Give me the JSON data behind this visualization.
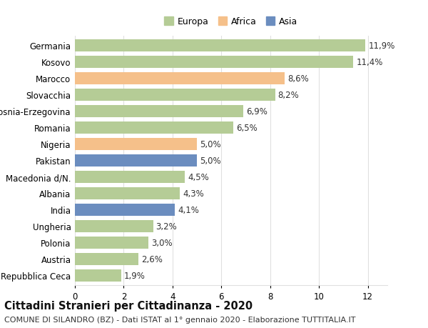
{
  "categories": [
    "Germania",
    "Kosovo",
    "Marocco",
    "Slovacchia",
    "Bosnia-Erzegovina",
    "Romania",
    "Nigeria",
    "Pakistan",
    "Macedonia d/N.",
    "Albania",
    "India",
    "Ungheria",
    "Polonia",
    "Austria",
    "Repubblica Ceca"
  ],
  "values": [
    11.9,
    11.4,
    8.6,
    8.2,
    6.9,
    6.5,
    5.0,
    5.0,
    4.5,
    4.3,
    4.1,
    3.2,
    3.0,
    2.6,
    1.9
  ],
  "labels": [
    "11,9%",
    "11,4%",
    "8,6%",
    "8,2%",
    "6,9%",
    "6,5%",
    "5,0%",
    "5,0%",
    "4,5%",
    "4,3%",
    "4,1%",
    "3,2%",
    "3,0%",
    "2,6%",
    "1,9%"
  ],
  "continents": [
    "Europa",
    "Europa",
    "Africa",
    "Europa",
    "Europa",
    "Europa",
    "Africa",
    "Asia",
    "Europa",
    "Europa",
    "Asia",
    "Europa",
    "Europa",
    "Europa",
    "Europa"
  ],
  "colors": {
    "Europa": "#b5cc96",
    "Africa": "#f5c08a",
    "Asia": "#6b8dbf"
  },
  "xlim": [
    0,
    12.8
  ],
  "xticks": [
    0,
    2,
    4,
    6,
    8,
    10,
    12
  ],
  "title": "Cittadini Stranieri per Cittadinanza - 2020",
  "subtitle": "COMUNE DI SILANDRO (BZ) - Dati ISTAT al 1° gennaio 2020 - Elaborazione TUTTITALIA.IT",
  "bg_color": "#ffffff",
  "grid_color": "#e0e0e0",
  "bar_height": 0.72,
  "label_fontsize": 8.5,
  "tick_fontsize": 8.5,
  "title_fontsize": 10.5,
  "subtitle_fontsize": 8
}
